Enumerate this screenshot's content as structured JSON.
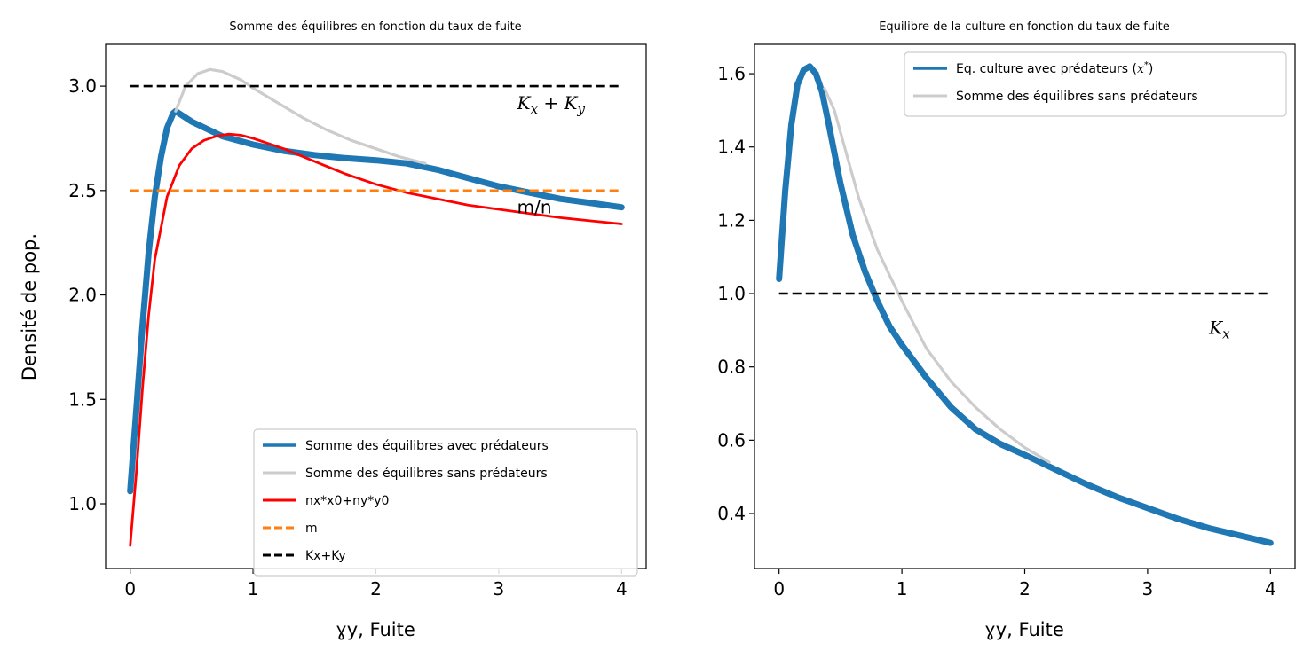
{
  "chart_data": [
    {
      "type": "line",
      "title": "Somme des équilibres en fonction du taux de fuite",
      "xlabel": "ɣy, Fuite",
      "ylabel": "Densité de pop.",
      "xlim": [
        -0.2,
        4.2
      ],
      "ylim": [
        0.69,
        3.2
      ],
      "xticks": [
        0,
        1,
        2,
        3,
        4
      ],
      "yticks": [
        1.0,
        1.5,
        2.0,
        2.5,
        3.0
      ],
      "xtick_labels": [
        "0",
        "1",
        "2",
        "3",
        "4"
      ],
      "ytick_labels": [
        "1.0",
        "1.5",
        "2.0",
        "2.5",
        "3.0"
      ],
      "legend_position": "bottom-right",
      "series": [
        {
          "name": "Somme des équilibres avec prédateurs",
          "color": "#1f77b4",
          "style": "thick",
          "x": [
            0,
            0.05,
            0.1,
            0.15,
            0.2,
            0.25,
            0.3,
            0.35,
            0.37,
            0.5,
            0.75,
            1.0,
            1.25,
            1.5,
            1.75,
            2.0,
            2.25,
            2.5,
            2.75,
            3.0,
            3.25,
            3.5,
            3.75,
            4.0
          ],
          "y": [
            1.06,
            1.45,
            1.85,
            2.2,
            2.47,
            2.66,
            2.8,
            2.87,
            2.88,
            2.83,
            2.76,
            2.72,
            2.69,
            2.67,
            2.655,
            2.645,
            2.63,
            2.6,
            2.56,
            2.52,
            2.49,
            2.46,
            2.44,
            2.42
          ]
        },
        {
          "name": "Somme des équilibres sans prédateurs",
          "color": "#cccccc",
          "style": "solid",
          "x": [
            0.37,
            0.45,
            0.55,
            0.65,
            0.75,
            0.9,
            1.0,
            1.2,
            1.4,
            1.6,
            1.8,
            2.0,
            2.2,
            2.4
          ],
          "y": [
            2.88,
            3.0,
            3.06,
            3.08,
            3.07,
            3.03,
            2.99,
            2.92,
            2.85,
            2.79,
            2.74,
            2.7,
            2.66,
            2.63
          ]
        },
        {
          "name": "nx*x0+ny*y0",
          "color": "#ff0000",
          "style": "solid",
          "x": [
            0,
            0.05,
            0.1,
            0.15,
            0.2,
            0.3,
            0.4,
            0.5,
            0.6,
            0.7,
            0.8,
            0.9,
            1.0,
            1.25,
            1.5,
            1.75,
            2.0,
            2.25,
            2.5,
            2.75,
            3.0,
            3.25,
            3.5,
            3.75,
            4.0
          ],
          "y": [
            0.8,
            1.15,
            1.55,
            1.9,
            2.17,
            2.47,
            2.62,
            2.7,
            2.74,
            2.76,
            2.77,
            2.765,
            2.75,
            2.7,
            2.64,
            2.58,
            2.53,
            2.49,
            2.46,
            2.43,
            2.41,
            2.39,
            2.37,
            2.355,
            2.34
          ]
        },
        {
          "name": "m",
          "color": "#ff7f0e",
          "style": "dashed",
          "x": [
            0,
            4
          ],
          "y": [
            2.5,
            2.5
          ]
        },
        {
          "name": "Kx+Ky",
          "color": "#000000",
          "style": "dashed",
          "x": [
            0,
            4
          ],
          "y": [
            3.0,
            3.0
          ]
        }
      ],
      "annotations": [
        {
          "text": "m/n",
          "x": 3.15,
          "y": 2.39,
          "italic": false
        },
        {
          "text": "K_x + K_y",
          "x": 3.15,
          "y": 2.89,
          "italic": true,
          "main": "K",
          "sub1": "x",
          "plus": " + K",
          "sub2": "y"
        }
      ]
    },
    {
      "type": "line",
      "title": "Equilibre de la culture en fonction du taux de fuite",
      "xlabel": "ɣy, Fuite",
      "ylabel": "",
      "xlim": [
        -0.2,
        4.2
      ],
      "ylim": [
        0.25,
        1.68
      ],
      "xticks": [
        0,
        1,
        2,
        3,
        4
      ],
      "yticks": [
        0.4,
        0.6,
        0.8,
        1.0,
        1.2,
        1.4,
        1.6
      ],
      "xtick_labels": [
        "0",
        "1",
        "2",
        "3",
        "4"
      ],
      "ytick_labels": [
        "0.4",
        "0.6",
        "0.8",
        "1.0",
        "1.2",
        "1.4",
        "1.6"
      ],
      "legend_position": "top-right",
      "series": [
        {
          "name": "Eq. culture avec prédateurs (x*)",
          "legend_main": "Eq. culture avec prédateurs (",
          "legend_var": "x",
          "legend_sup": "*",
          "legend_end": ")",
          "color": "#1f77b4",
          "style": "thick",
          "x": [
            0,
            0.05,
            0.1,
            0.15,
            0.2,
            0.25,
            0.3,
            0.35,
            0.4,
            0.5,
            0.6,
            0.7,
            0.8,
            0.9,
            1.0,
            1.2,
            1.4,
            1.6,
            1.8,
            2.0,
            2.25,
            2.5,
            2.75,
            3.0,
            3.25,
            3.5,
            3.75,
            4.0
          ],
          "y": [
            1.04,
            1.28,
            1.46,
            1.57,
            1.61,
            1.62,
            1.6,
            1.55,
            1.47,
            1.3,
            1.16,
            1.06,
            0.98,
            0.91,
            0.86,
            0.77,
            0.69,
            0.63,
            0.59,
            0.56,
            0.52,
            0.48,
            0.445,
            0.415,
            0.385,
            0.36,
            0.34,
            0.32
          ]
        },
        {
          "name": "Somme des équilibres sans prédateurs",
          "color": "#cccccc",
          "style": "solid",
          "x": [
            0.37,
            0.45,
            0.55,
            0.65,
            0.8,
            1.0,
            1.2,
            1.4,
            1.6,
            1.8,
            2.0,
            2.2
          ],
          "y": [
            1.56,
            1.5,
            1.38,
            1.26,
            1.12,
            0.98,
            0.85,
            0.76,
            0.69,
            0.63,
            0.58,
            0.54
          ]
        },
        {
          "name": "",
          "color": "#000000",
          "style": "dashed",
          "x": [
            0,
            4
          ],
          "y": [
            1.0,
            1.0
          ]
        }
      ],
      "annotations": [
        {
          "text": "K_x",
          "x": 3.5,
          "y": 0.89,
          "italic": true,
          "main": "K",
          "sub1": "x"
        }
      ]
    }
  ]
}
